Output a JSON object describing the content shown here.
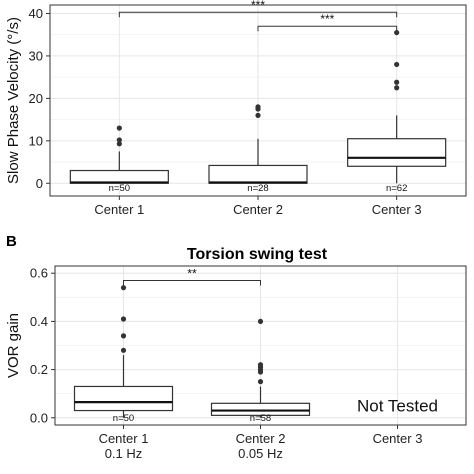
{
  "chart_data": [
    {
      "type": "box",
      "panel": "",
      "title": "",
      "xlabel": "",
      "ylabel": "Slow Phase Velocity (°/s)",
      "ylim": [
        -3,
        42
      ],
      "yticks": [
        0,
        10,
        20,
        30,
        40
      ],
      "grid": true,
      "categories": [
        {
          "label": "Center 1",
          "sublabel": ""
        },
        {
          "label": "Center 2",
          "sublabel": ""
        },
        {
          "label": "Center 3",
          "sublabel": ""
        }
      ],
      "boxes": [
        {
          "q1": 0,
          "median": 0.2,
          "q3": 3.0,
          "whisker_low": 0,
          "whisker_high": 7.5,
          "outliers": [
            9.3,
            10.2,
            13.0
          ],
          "n_label": "n=50"
        },
        {
          "q1": 0,
          "median": 0.2,
          "q3": 4.2,
          "whisker_low": 0,
          "whisker_high": 10.5,
          "outliers": [
            16.0,
            17.5,
            18.0
          ],
          "n_label": "n=28"
        },
        {
          "q1": 4.0,
          "median": 6.0,
          "q3": 10.5,
          "whisker_low": 0,
          "whisker_high": 16.0,
          "outliers": [
            22.5,
            23.8,
            28.0,
            35.5
          ],
          "n_label": "n=62"
        }
      ],
      "significance": [
        {
          "from": 0,
          "to": 2,
          "y": 40.3,
          "label": "***"
        },
        {
          "from": 1,
          "to": 2,
          "y": 37.0,
          "label": "***"
        }
      ],
      "annotations": []
    },
    {
      "type": "box",
      "panel": "B",
      "title": "Torsion swing test",
      "xlabel": "",
      "ylabel": "VOR gain",
      "ylim": [
        -0.03,
        0.63
      ],
      "yticks": [
        0.0,
        0.2,
        0.4,
        0.6
      ],
      "grid": true,
      "categories": [
        {
          "label": "Center 1",
          "sublabel": "0.1 Hz"
        },
        {
          "label": "Center 2",
          "sublabel": "0.05  Hz"
        },
        {
          "label": "Center 3",
          "sublabel": ""
        }
      ],
      "boxes": [
        {
          "q1": 0.03,
          "median": 0.065,
          "q3": 0.13,
          "whisker_low": 0.0,
          "whisker_high": 0.26,
          "outliers": [
            0.28,
            0.34,
            0.41,
            0.54
          ],
          "n_label": "n=50"
        },
        {
          "q1": 0.01,
          "median": 0.03,
          "q3": 0.06,
          "whisker_low": 0.0,
          "whisker_high": 0.13,
          "outliers": [
            0.15,
            0.19,
            0.2,
            0.21,
            0.22,
            0.4
          ],
          "n_label": "n=58"
        },
        null
      ],
      "significance": [
        {
          "from": 0,
          "to": 1,
          "y": 0.57,
          "label": "**"
        }
      ],
      "annotations": [
        {
          "category": 2,
          "y": 0.05,
          "text": "Not Tested"
        }
      ]
    }
  ]
}
